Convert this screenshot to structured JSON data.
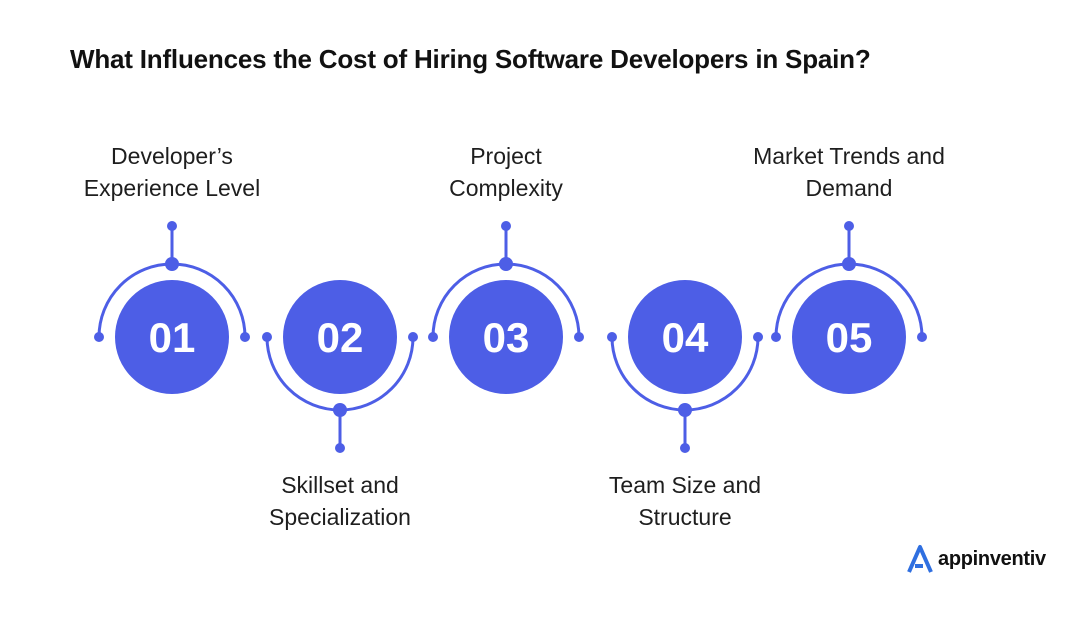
{
  "title": "What Influences the Cost of Hiring Software Developers in Spain?",
  "accent_color": "#4d5ee6",
  "steps": [
    {
      "number": "01",
      "label_lines": [
        "Developer’s",
        "Experience Level"
      ],
      "label_side": "top"
    },
    {
      "number": "02",
      "label_lines": [
        "Skillset and",
        "Specialization"
      ],
      "label_side": "bottom"
    },
    {
      "number": "03",
      "label_lines": [
        "Project",
        "Complexity"
      ],
      "label_side": "top"
    },
    {
      "number": "04",
      "label_lines": [
        "Team Size and",
        "Structure"
      ],
      "label_side": "bottom"
    },
    {
      "number": "05",
      "label_lines": [
        "Market Trends and",
        "Demand"
      ],
      "label_side": "top"
    }
  ],
  "brand": {
    "name": "appinventiv",
    "icon": "appinventiv-logo-icon"
  }
}
